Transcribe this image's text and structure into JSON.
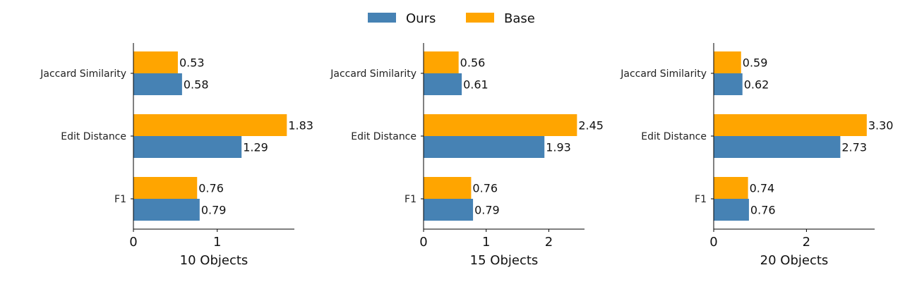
{
  "chart_data": {
    "type": "bar",
    "orientation": "horizontal",
    "legend": {
      "placement": "top-center",
      "entries": [
        {
          "name": "Ours",
          "color": "#4682b4"
        },
        {
          "name": "Base",
          "color": "#ffa500"
        }
      ]
    },
    "categories": [
      "Jaccard Similarity",
      "Edit Distance",
      "F1"
    ],
    "panels": [
      {
        "xlabel": "10 Objects",
        "xlim": [
          0,
          1.92
        ],
        "xticks": [
          0,
          1
        ],
        "series": [
          {
            "name": "Ours",
            "values": [
              0.58,
              1.29,
              0.79
            ],
            "labels": [
              "0.58",
              "1.29",
              "0.79"
            ]
          },
          {
            "name": "Base",
            "values": [
              0.53,
              1.83,
              0.76
            ],
            "labels": [
              "0.53",
              "1.83",
              "0.76"
            ]
          }
        ]
      },
      {
        "xlabel": "15 Objects",
        "xlim": [
          0,
          2.57
        ],
        "xticks": [
          0,
          1,
          2
        ],
        "series": [
          {
            "name": "Ours",
            "values": [
              0.61,
              1.93,
              0.79
            ],
            "labels": [
              "0.61",
              "1.93",
              "0.79"
            ]
          },
          {
            "name": "Base",
            "values": [
              0.56,
              2.45,
              0.76
            ],
            "labels": [
              "0.56",
              "2.45",
              "0.76"
            ]
          }
        ]
      },
      {
        "xlabel": "20 Objects",
        "xlim": [
          0,
          3.47
        ],
        "xticks": [
          0,
          2
        ],
        "series": [
          {
            "name": "Ours",
            "values": [
              0.62,
              2.73,
              0.76
            ],
            "labels": [
              "0.62",
              "2.73",
              "0.76"
            ]
          },
          {
            "name": "Base",
            "values": [
              0.59,
              3.3,
              0.74
            ],
            "labels": [
              "0.59",
              "3.30",
              "0.74"
            ]
          }
        ]
      }
    ]
  }
}
